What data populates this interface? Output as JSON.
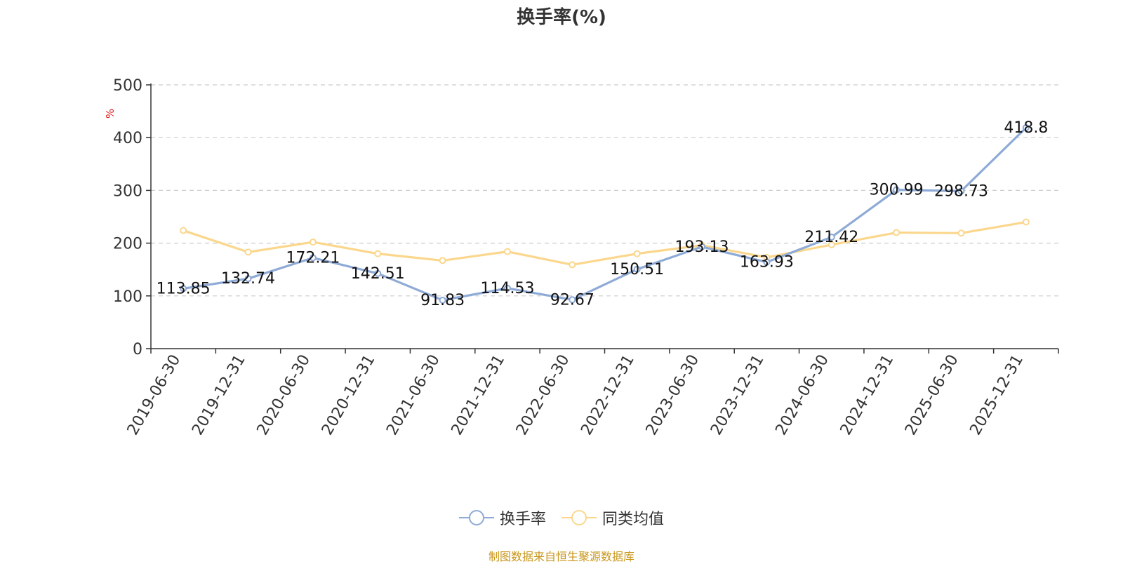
{
  "chart_data": {
    "type": "line",
    "title": "换手率(%)",
    "ylabel": "%",
    "xlabel": "",
    "ylim": [
      0,
      500
    ],
    "yticks": [
      0,
      100,
      200,
      300,
      400,
      500
    ],
    "grid": true,
    "legend_position": "bottom",
    "categories": [
      "2019-06-30",
      "2019-12-31",
      "2020-06-30",
      "2020-12-31",
      "2021-06-30",
      "2021-12-31",
      "2022-06-30",
      "2022-12-31",
      "2023-06-30",
      "2023-12-31",
      "2024-06-30",
      "2024-12-31",
      "2025-06-30",
      "2025-12-31"
    ],
    "series": [
      {
        "name": "换手率",
        "color": "#8eaad6",
        "values": [
          113.85,
          132.74,
          172.21,
          142.51,
          91.83,
          114.53,
          92.67,
          150.51,
          193.13,
          163.93,
          211.42,
          300.99,
          298.73,
          418.8
        ],
        "labels": [
          "113.85",
          "132.74",
          "172.21",
          "142.51",
          "91.83",
          "114.53",
          "92.67",
          "150.51",
          "193.13",
          "163.93",
          "211.42",
          "300.99",
          "298.73",
          "418.8"
        ]
      },
      {
        "name": "同类均值",
        "color": "#fbd78d",
        "values": [
          224,
          183,
          202,
          180,
          167,
          184,
          159,
          180,
          196,
          173,
          197,
          220,
          219,
          240
        ]
      }
    ]
  },
  "source": "制图数据来自恒生聚源数据库"
}
